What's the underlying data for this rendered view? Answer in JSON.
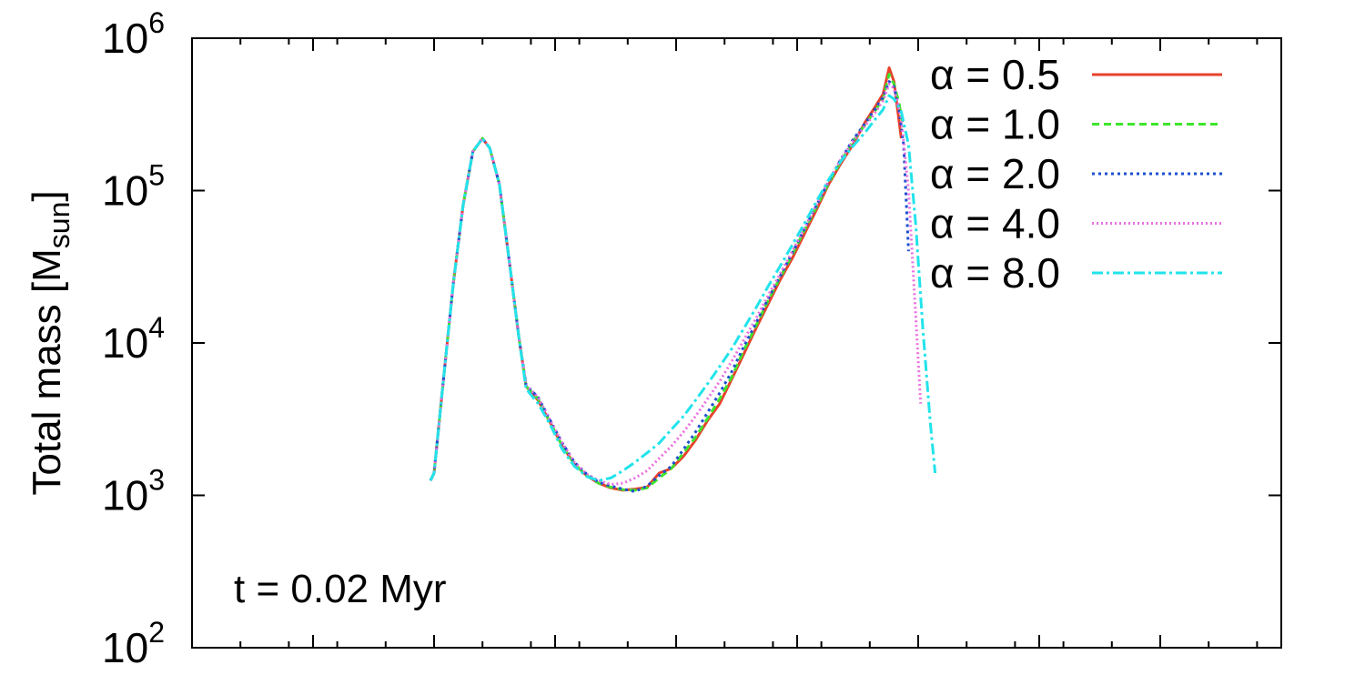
{
  "chart_data": {
    "type": "line",
    "xlabel": "",
    "ylabel": {
      "main": "Total mass [M",
      "sub": "sun",
      "close": "]"
    },
    "y_scale": "log",
    "ylim": [
      100,
      1000000
    ],
    "xlim": [
      0,
      9
    ],
    "y_ticks": [
      {
        "value": 100,
        "base": "10",
        "exp": "2"
      },
      {
        "value": 1000,
        "base": "10",
        "exp": "3"
      },
      {
        "value": 10000,
        "base": "10",
        "exp": "4"
      },
      {
        "value": 100000,
        "base": "10",
        "exp": "5"
      },
      {
        "value": 1000000,
        "base": "10",
        "exp": "6"
      }
    ],
    "x_major_ticks": [
      1,
      2,
      3,
      4,
      5,
      6,
      7,
      8
    ],
    "x_minor_tick_step": 0.4,
    "grid": false,
    "legend_position": "top-right",
    "annotation": "t = 0.02 Myr",
    "series": [
      {
        "name": "α = 0.5",
        "color": "#e8412c",
        "dash": "",
        "points": [
          [
            1.97,
            1250
          ],
          [
            2.0,
            1400
          ],
          [
            2.08,
            6000
          ],
          [
            2.16,
            25000
          ],
          [
            2.24,
            80000
          ],
          [
            2.32,
            180000
          ],
          [
            2.4,
            220000
          ],
          [
            2.46,
            190000
          ],
          [
            2.54,
            110000
          ],
          [
            2.62,
            35000
          ],
          [
            2.7,
            11000
          ],
          [
            2.76,
            5200
          ],
          [
            2.86,
            4200
          ],
          [
            2.96,
            3000
          ],
          [
            3.06,
            2100
          ],
          [
            3.16,
            1600
          ],
          [
            3.26,
            1350
          ],
          [
            3.36,
            1200
          ],
          [
            3.46,
            1120
          ],
          [
            3.56,
            1080
          ],
          [
            3.66,
            1100
          ],
          [
            3.76,
            1130
          ],
          [
            3.86,
            1400
          ],
          [
            3.96,
            1500
          ],
          [
            4.06,
            1800
          ],
          [
            4.16,
            2300
          ],
          [
            4.26,
            3100
          ],
          [
            4.36,
            4000
          ],
          [
            4.46,
            5800
          ],
          [
            4.56,
            8500
          ],
          [
            4.66,
            12500
          ],
          [
            4.76,
            18000
          ],
          [
            4.86,
            26000
          ],
          [
            4.96,
            36000
          ],
          [
            5.06,
            52000
          ],
          [
            5.16,
            75000
          ],
          [
            5.26,
            110000
          ],
          [
            5.36,
            150000
          ],
          [
            5.46,
            200000
          ],
          [
            5.56,
            280000
          ],
          [
            5.64,
            350000
          ],
          [
            5.71,
            430000
          ],
          [
            5.76,
            640000
          ],
          [
            5.8,
            520000
          ],
          [
            5.86,
            220000
          ]
        ]
      },
      {
        "name": "α = 1.0",
        "color": "#3ee62b",
        "dash": "8 5",
        "points": [
          [
            1.97,
            1250
          ],
          [
            2.0,
            1400
          ],
          [
            2.08,
            6000
          ],
          [
            2.16,
            25000
          ],
          [
            2.24,
            80000
          ],
          [
            2.32,
            180000
          ],
          [
            2.4,
            220000
          ],
          [
            2.46,
            190000
          ],
          [
            2.54,
            110000
          ],
          [
            2.62,
            35000
          ],
          [
            2.7,
            11000
          ],
          [
            2.76,
            5200
          ],
          [
            2.86,
            4300
          ],
          [
            2.96,
            3000
          ],
          [
            3.06,
            2100
          ],
          [
            3.16,
            1600
          ],
          [
            3.26,
            1350
          ],
          [
            3.36,
            1200
          ],
          [
            3.46,
            1130
          ],
          [
            3.56,
            1090
          ],
          [
            3.66,
            1080
          ],
          [
            3.76,
            1120
          ],
          [
            3.86,
            1300
          ],
          [
            3.96,
            1500
          ],
          [
            4.06,
            1900
          ],
          [
            4.16,
            2400
          ],
          [
            4.26,
            3200
          ],
          [
            4.36,
            4300
          ],
          [
            4.46,
            6000
          ],
          [
            4.56,
            9000
          ],
          [
            4.66,
            13000
          ],
          [
            4.76,
            19000
          ],
          [
            4.86,
            27000
          ],
          [
            4.96,
            38000
          ],
          [
            5.06,
            55000
          ],
          [
            5.16,
            78000
          ],
          [
            5.26,
            112000
          ],
          [
            5.36,
            155000
          ],
          [
            5.46,
            210000
          ],
          [
            5.56,
            270000
          ],
          [
            5.64,
            330000
          ],
          [
            5.71,
            400000
          ],
          [
            5.76,
            580000
          ],
          [
            5.8,
            500000
          ],
          [
            5.84,
            380000
          ],
          [
            5.88,
            260000
          ]
        ]
      },
      {
        "name": "α = 2.0",
        "color": "#1e4fd0",
        "dash": "3 4",
        "points": [
          [
            1.97,
            1250
          ],
          [
            2.0,
            1400
          ],
          [
            2.08,
            6000
          ],
          [
            2.16,
            25000
          ],
          [
            2.24,
            80000
          ],
          [
            2.32,
            180000
          ],
          [
            2.4,
            220000
          ],
          [
            2.46,
            190000
          ],
          [
            2.54,
            110000
          ],
          [
            2.62,
            35000
          ],
          [
            2.7,
            11000
          ],
          [
            2.76,
            5300
          ],
          [
            2.86,
            4400
          ],
          [
            2.96,
            3100
          ],
          [
            3.06,
            2200
          ],
          [
            3.16,
            1650
          ],
          [
            3.26,
            1380
          ],
          [
            3.36,
            1220
          ],
          [
            3.46,
            1150
          ],
          [
            3.56,
            1100
          ],
          [
            3.66,
            1060
          ],
          [
            3.76,
            1150
          ],
          [
            3.86,
            1350
          ],
          [
            3.96,
            1550
          ],
          [
            4.06,
            2000
          ],
          [
            4.16,
            2600
          ],
          [
            4.26,
            3500
          ],
          [
            4.36,
            4700
          ],
          [
            4.46,
            6500
          ],
          [
            4.56,
            9500
          ],
          [
            4.66,
            13500
          ],
          [
            4.76,
            19500
          ],
          [
            4.86,
            27500
          ],
          [
            4.96,
            39000
          ],
          [
            5.06,
            56000
          ],
          [
            5.16,
            80000
          ],
          [
            5.26,
            115000
          ],
          [
            5.36,
            160000
          ],
          [
            5.46,
            215000
          ],
          [
            5.56,
            275000
          ],
          [
            5.64,
            340000
          ],
          [
            5.71,
            410000
          ],
          [
            5.76,
            520000
          ],
          [
            5.8,
            480000
          ],
          [
            5.84,
            350000
          ],
          [
            5.88,
            200000
          ],
          [
            5.92,
            40000
          ]
        ]
      },
      {
        "name": "α = 4.0",
        "color": "#ea6fe0",
        "dash": "2 3",
        "points": [
          [
            1.97,
            1250
          ],
          [
            2.0,
            1400
          ],
          [
            2.08,
            6000
          ],
          [
            2.16,
            25000
          ],
          [
            2.24,
            80000
          ],
          [
            2.32,
            180000
          ],
          [
            2.4,
            220000
          ],
          [
            2.46,
            190000
          ],
          [
            2.54,
            110000
          ],
          [
            2.62,
            35000
          ],
          [
            2.7,
            11000
          ],
          [
            2.76,
            5300
          ],
          [
            2.86,
            4400
          ],
          [
            2.96,
            3100
          ],
          [
            3.06,
            2200
          ],
          [
            3.16,
            1650
          ],
          [
            3.26,
            1380
          ],
          [
            3.36,
            1250
          ],
          [
            3.46,
            1180
          ],
          [
            3.56,
            1200
          ],
          [
            3.66,
            1300
          ],
          [
            3.76,
            1450
          ],
          [
            3.86,
            1750
          ],
          [
            3.96,
            2100
          ],
          [
            4.06,
            2600
          ],
          [
            4.16,
            3300
          ],
          [
            4.26,
            4300
          ],
          [
            4.36,
            5600
          ],
          [
            4.46,
            7600
          ],
          [
            4.56,
            10500
          ],
          [
            4.66,
            14500
          ],
          [
            4.76,
            20500
          ],
          [
            4.86,
            28500
          ],
          [
            4.96,
            40000
          ],
          [
            5.06,
            57000
          ],
          [
            5.16,
            81000
          ],
          [
            5.26,
            116000
          ],
          [
            5.36,
            160000
          ],
          [
            5.46,
            210000
          ],
          [
            5.56,
            265000
          ],
          [
            5.64,
            320000
          ],
          [
            5.71,
            390000
          ],
          [
            5.76,
            500000
          ],
          [
            5.8,
            470000
          ],
          [
            5.86,
            300000
          ],
          [
            5.92,
            100000
          ],
          [
            5.98,
            15000
          ],
          [
            6.02,
            4000
          ]
        ]
      },
      {
        "name": "α = 8.0",
        "color": "#22e3eb",
        "dash": "12 4 3 4",
        "points": [
          [
            1.97,
            1250
          ],
          [
            2.0,
            1400
          ],
          [
            2.08,
            6000
          ],
          [
            2.16,
            25000
          ],
          [
            2.24,
            80000
          ],
          [
            2.32,
            180000
          ],
          [
            2.4,
            220000
          ],
          [
            2.46,
            190000
          ],
          [
            2.54,
            110000
          ],
          [
            2.62,
            35000
          ],
          [
            2.7,
            11000
          ],
          [
            2.76,
            5000
          ],
          [
            2.86,
            4000
          ],
          [
            2.96,
            2900
          ],
          [
            3.06,
            2000
          ],
          [
            3.16,
            1550
          ],
          [
            3.26,
            1330
          ],
          [
            3.36,
            1250
          ],
          [
            3.46,
            1300
          ],
          [
            3.56,
            1450
          ],
          [
            3.66,
            1650
          ],
          [
            3.76,
            1900
          ],
          [
            3.86,
            2200
          ],
          [
            3.96,
            2700
          ],
          [
            4.06,
            3300
          ],
          [
            4.16,
            4200
          ],
          [
            4.26,
            5400
          ],
          [
            4.36,
            7000
          ],
          [
            4.46,
            9200
          ],
          [
            4.56,
            12500
          ],
          [
            4.66,
            17000
          ],
          [
            4.76,
            23500
          ],
          [
            4.86,
            32000
          ],
          [
            4.96,
            44000
          ],
          [
            5.06,
            61000
          ],
          [
            5.16,
            85000
          ],
          [
            5.26,
            118000
          ],
          [
            5.36,
            155000
          ],
          [
            5.46,
            195000
          ],
          [
            5.56,
            240000
          ],
          [
            5.64,
            290000
          ],
          [
            5.71,
            340000
          ],
          [
            5.76,
            420000
          ],
          [
            5.8,
            400000
          ],
          [
            5.86,
            330000
          ],
          [
            5.92,
            200000
          ],
          [
            5.98,
            60000
          ],
          [
            6.04,
            12000
          ],
          [
            6.1,
            3000
          ],
          [
            6.14,
            1400
          ]
        ]
      }
    ]
  }
}
